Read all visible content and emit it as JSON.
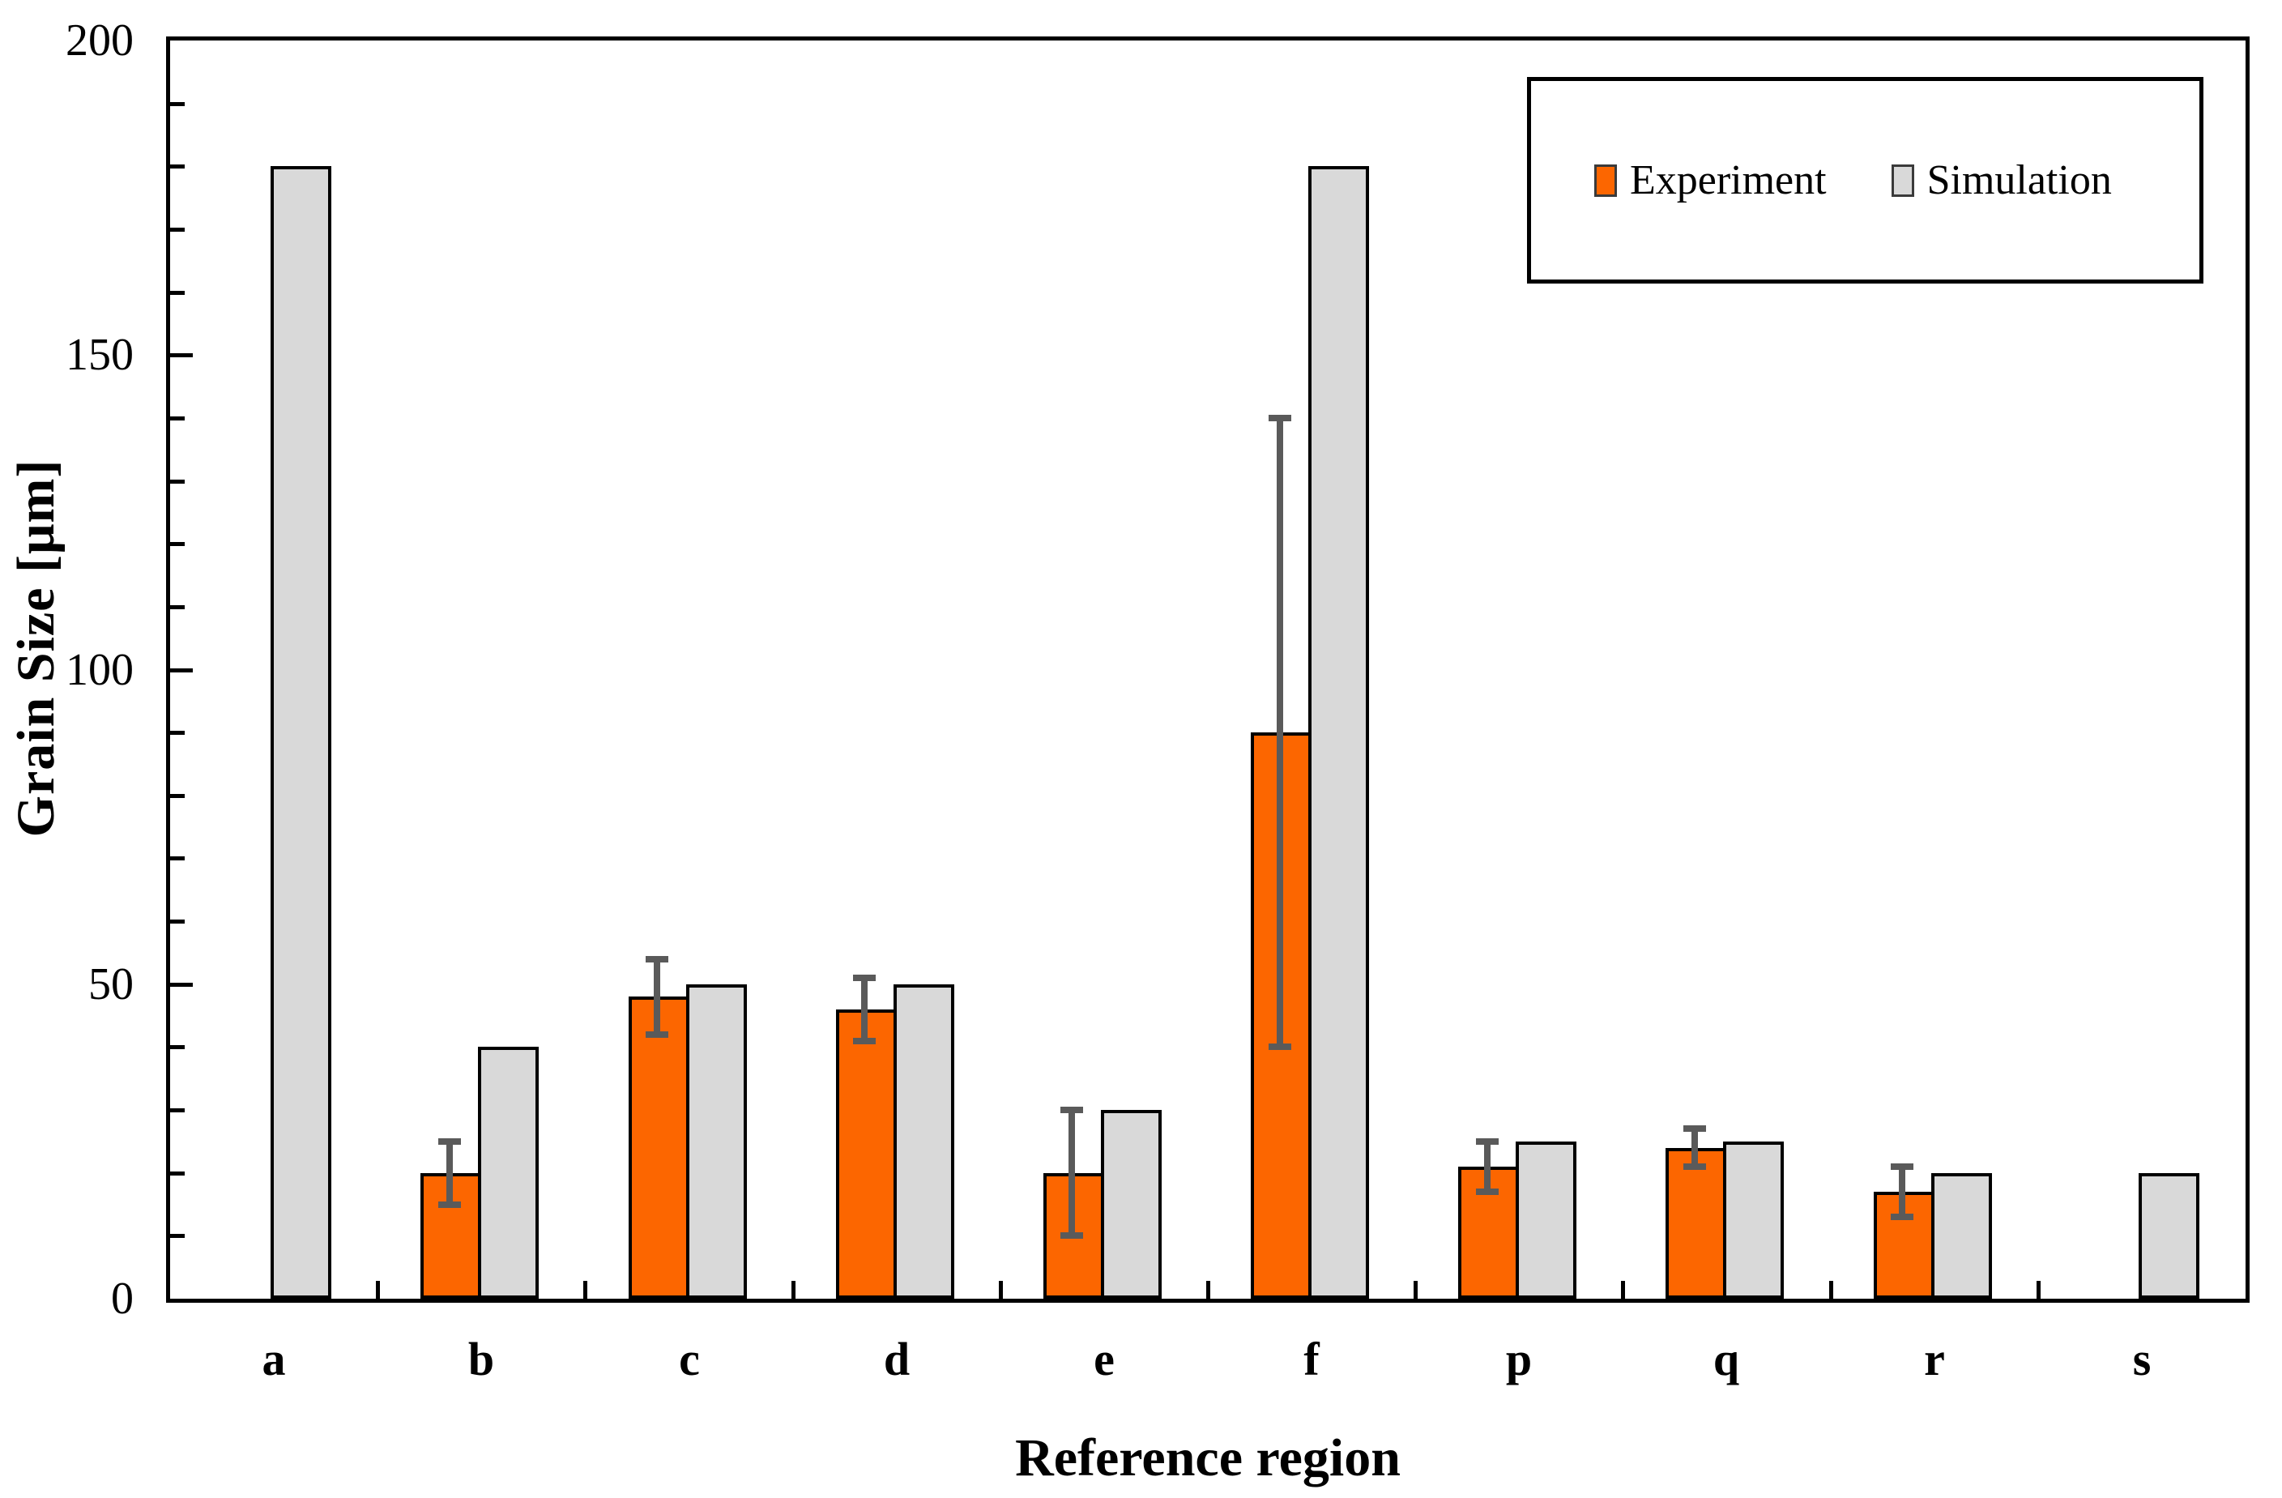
{
  "figure": {
    "background": "#ffffff",
    "frame_color": "#000000"
  },
  "axes": {
    "y_tick_labels": [
      "0",
      "50",
      "100",
      "150",
      "200"
    ]
  },
  "legend": {
    "position": "top-right",
    "items": [
      {
        "label": "Experiment",
        "color": "#FC6600"
      },
      {
        "label": "Simulation",
        "color": "#D9D9D9"
      }
    ]
  },
  "chart_data": {
    "type": "bar",
    "title": "",
    "xlabel": "Reference region",
    "ylabel": "Grain Size [μm]",
    "ylim": [
      0,
      200
    ],
    "y_major_tick_step": 50,
    "y_minor_tick_step": 10,
    "grid": false,
    "legend_position": "top-right",
    "categories": [
      "a",
      "b",
      "c",
      "d",
      "e",
      "f",
      "p",
      "q",
      "r",
      "s"
    ],
    "series": [
      {
        "name": "Experiment",
        "color": "#FC6600",
        "values": [
          null,
          20,
          48,
          46,
          20,
          90,
          21,
          24,
          17,
          null
        ],
        "error_low": [
          null,
          15,
          42,
          41,
          10,
          40,
          17,
          21,
          13,
          null
        ],
        "error_high": [
          null,
          25,
          54,
          51,
          30,
          140,
          25,
          27,
          21,
          null
        ]
      },
      {
        "name": "Simulation",
        "color": "#D9D9D9",
        "values": [
          180,
          40,
          50,
          50,
          30,
          180,
          25,
          25,
          20,
          20
        ]
      }
    ],
    "error_bar_color": "#5A5A5A",
    "bar_border_color": "#000000"
  }
}
